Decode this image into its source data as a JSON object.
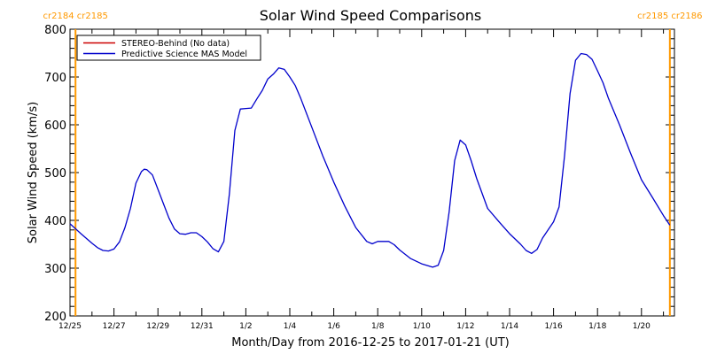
{
  "chart_data": {
    "type": "line",
    "title": "Solar Wind Speed Comparisons",
    "xlabel": "Month/Day from 2016-12-25 to 2017-01-21 (UT)",
    "ylabel": "Solar Wind Speed (km/s)",
    "xlim": [
      "2016-12-25",
      "2017-01-21T12:00"
    ],
    "ylim": [
      200,
      800
    ],
    "yticks": [
      "200",
      "300",
      "400",
      "500",
      "600",
      "700",
      "800"
    ],
    "xticks": [
      {
        "date": "2016-12-25",
        "label": "12/25"
      },
      {
        "date": "2016-12-27",
        "label": "12/27"
      },
      {
        "date": "2016-12-29",
        "label": "12/29"
      },
      {
        "date": "2016-12-31",
        "label": "12/31"
      },
      {
        "date": "2017-01-02",
        "label": "1/2"
      },
      {
        "date": "2017-01-04",
        "label": "1/4"
      },
      {
        "date": "2017-01-06",
        "label": "1/6"
      },
      {
        "date": "2017-01-08",
        "label": "1/8"
      },
      {
        "date": "2017-01-10",
        "label": "1/10"
      },
      {
        "date": "2017-01-12",
        "label": "1/12"
      },
      {
        "date": "2017-01-14",
        "label": "1/14"
      },
      {
        "date": "2017-01-16",
        "label": "1/16"
      },
      {
        "date": "2017-01-18",
        "label": "1/18"
      },
      {
        "date": "2017-01-20",
        "label": "1/20"
      }
    ],
    "grid": false,
    "legend_position": "top-left",
    "legend": [
      {
        "name": "STEREO-Behind (No data)",
        "color": "#cc0000"
      },
      {
        "name": "Predictive Science MAS Model",
        "color": "#0000cc"
      }
    ],
    "vlines": [
      {
        "date": "2016-12-25T06:00",
        "labels": [
          "cr2184",
          "cr2185"
        ],
        "color": "#ff9900"
      },
      {
        "date": "2017-01-21T07:00",
        "labels": [
          "cr2185",
          "cr2186"
        ],
        "color": "#ff9900"
      }
    ],
    "series": [
      {
        "name": "Predictive Science MAS Model",
        "color": "#0000cc",
        "points": [
          [
            "2016-12-25T00:00",
            393
          ],
          [
            "2016-12-25T12:00",
            372
          ],
          [
            "2016-12-26T00:00",
            352
          ],
          [
            "2016-12-26T06:00",
            343
          ],
          [
            "2016-12-26T12:00",
            337
          ],
          [
            "2016-12-26T18:00",
            336
          ],
          [
            "2016-12-27T00:00",
            340
          ],
          [
            "2016-12-27T06:00",
            355
          ],
          [
            "2016-12-27T12:00",
            385
          ],
          [
            "2016-12-27T18:00",
            425
          ],
          [
            "2016-12-28T00:00",
            478
          ],
          [
            "2016-12-28T06:00",
            502
          ],
          [
            "2016-12-28T09:00",
            507
          ],
          [
            "2016-12-28T12:00",
            506
          ],
          [
            "2016-12-28T18:00",
            495
          ],
          [
            "2016-12-29T00:00",
            465
          ],
          [
            "2016-12-29T06:00",
            435
          ],
          [
            "2016-12-29T12:00",
            405
          ],
          [
            "2016-12-29T18:00",
            382
          ],
          [
            "2016-12-30T00:00",
            372
          ],
          [
            "2016-12-30T06:00",
            371
          ],
          [
            "2016-12-30T12:00",
            374
          ],
          [
            "2016-12-30T18:00",
            374
          ],
          [
            "2016-12-31T00:00",
            366
          ],
          [
            "2016-12-31T06:00",
            355
          ],
          [
            "2016-12-31T12:00",
            341
          ],
          [
            "2016-12-31T18:00",
            334
          ],
          [
            "2017-01-01T00:00",
            356
          ],
          [
            "2017-01-01T06:00",
            455
          ],
          [
            "2017-01-01T12:00",
            588
          ],
          [
            "2017-01-01T18:00",
            633
          ],
          [
            "2017-01-02T00:00",
            634
          ],
          [
            "2017-01-02T06:00",
            635
          ],
          [
            "2017-01-02T12:00",
            654
          ],
          [
            "2017-01-02T18:00",
            672
          ],
          [
            "2017-01-03T00:00",
            696
          ],
          [
            "2017-01-03T06:00",
            706
          ],
          [
            "2017-01-03T12:00",
            719
          ],
          [
            "2017-01-03T18:00",
            716
          ],
          [
            "2017-01-04T00:00",
            700
          ],
          [
            "2017-01-04T06:00",
            682
          ],
          [
            "2017-01-04T12:00",
            655
          ],
          [
            "2017-01-05T00:00",
            595
          ],
          [
            "2017-01-05T12:00",
            535
          ],
          [
            "2017-01-06T00:00",
            480
          ],
          [
            "2017-01-06T12:00",
            430
          ],
          [
            "2017-01-07T00:00",
            385
          ],
          [
            "2017-01-07T12:00",
            356
          ],
          [
            "2017-01-07T18:00",
            351
          ],
          [
            "2017-01-08T00:00",
            356
          ],
          [
            "2017-01-08T12:00",
            356
          ],
          [
            "2017-01-08T18:00",
            349
          ],
          [
            "2017-01-09T00:00",
            338
          ],
          [
            "2017-01-09T12:00",
            320
          ],
          [
            "2017-01-10T00:00",
            309
          ],
          [
            "2017-01-10T12:00",
            302
          ],
          [
            "2017-01-10T18:00",
            306
          ],
          [
            "2017-01-11T00:00",
            337
          ],
          [
            "2017-01-11T06:00",
            418
          ],
          [
            "2017-01-11T12:00",
            525
          ],
          [
            "2017-01-11T18:00",
            568
          ],
          [
            "2017-01-12T00:00",
            558
          ],
          [
            "2017-01-12T06:00",
            525
          ],
          [
            "2017-01-12T12:00",
            488
          ],
          [
            "2017-01-13T00:00",
            425
          ],
          [
            "2017-01-13T12:00",
            398
          ],
          [
            "2017-01-14T00:00",
            372
          ],
          [
            "2017-01-14T12:00",
            350
          ],
          [
            "2017-01-14T18:00",
            337
          ],
          [
            "2017-01-15T00:00",
            331
          ],
          [
            "2017-01-15T06:00",
            339
          ],
          [
            "2017-01-15T12:00",
            363
          ],
          [
            "2017-01-16T00:00",
            397
          ],
          [
            "2017-01-16T06:00",
            428
          ],
          [
            "2017-01-16T12:00",
            535
          ],
          [
            "2017-01-16T18:00",
            665
          ],
          [
            "2017-01-17T00:00",
            735
          ],
          [
            "2017-01-17T06:00",
            749
          ],
          [
            "2017-01-17T12:00",
            747
          ],
          [
            "2017-01-17T18:00",
            737
          ],
          [
            "2017-01-18T00:00",
            713
          ],
          [
            "2017-01-18T06:00",
            688
          ],
          [
            "2017-01-18T12:00",
            655
          ],
          [
            "2017-01-19T00:00",
            600
          ],
          [
            "2017-01-19T12:00",
            541
          ],
          [
            "2017-01-20T00:00",
            485
          ],
          [
            "2017-01-20T12:00",
            448
          ],
          [
            "2017-01-21T00:00",
            410
          ],
          [
            "2017-01-21T07:00",
            390
          ]
        ]
      }
    ]
  }
}
